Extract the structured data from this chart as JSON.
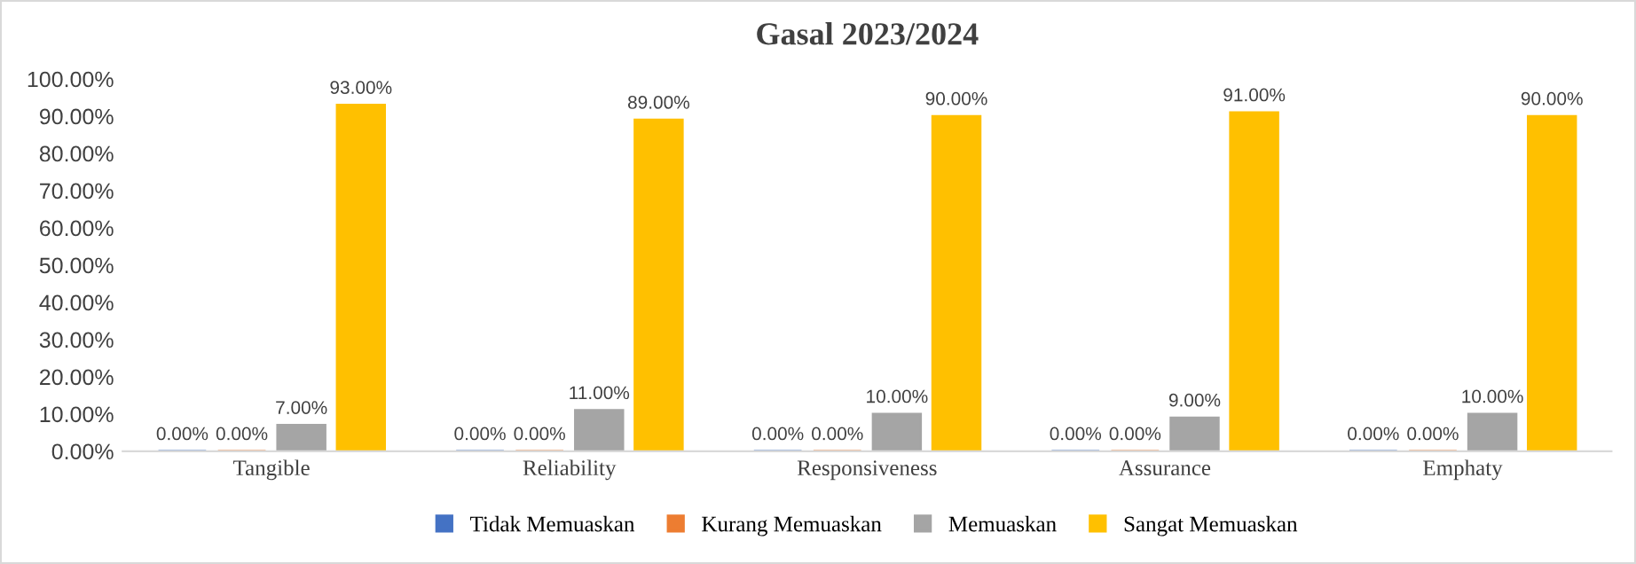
{
  "chart_data": {
    "type": "bar",
    "title": "Gasal 2023/2024",
    "categories": [
      "Tangible",
      "Reliability",
      "Responsiveness",
      "Assurance",
      "Emphaty"
    ],
    "series": [
      {
        "name": "Tidak Memuaskan",
        "color": "#4472c4",
        "values": [
          0,
          0,
          0,
          0,
          0
        ],
        "value_labels": [
          "0.00%",
          "0.00%",
          "0.00%",
          "0.00%",
          "0.00%"
        ]
      },
      {
        "name": "Kurang Memuaskan",
        "color": "#ed7d31",
        "values": [
          0,
          0,
          0,
          0,
          0
        ],
        "value_labels": [
          "0.00%",
          "0.00%",
          "0.00%",
          "0.00%",
          "0.00%"
        ]
      },
      {
        "name": "Memuaskan",
        "color": "#a5a5a5",
        "values": [
          7,
          11,
          10,
          9,
          10
        ],
        "value_labels": [
          "7.00%",
          "11.00%",
          "10.00%",
          "9.00%",
          "10.00%"
        ]
      },
      {
        "name": "Sangat Memuaskan",
        "color": "#ffc000",
        "values": [
          93,
          89,
          90,
          91,
          90
        ],
        "value_labels": [
          "93.00%",
          "89.00%",
          "90.00%",
          "91.00%",
          "90.00%"
        ]
      }
    ],
    "ylim": [
      0,
      100
    ],
    "yticks": [
      {
        "value": 0,
        "label": "0.00%"
      },
      {
        "value": 10,
        "label": "10.00%"
      },
      {
        "value": 20,
        "label": "20.00%"
      },
      {
        "value": 30,
        "label": "30.00%"
      },
      {
        "value": 40,
        "label": "40.00%"
      },
      {
        "value": 50,
        "label": "50.00%"
      },
      {
        "value": 60,
        "label": "60.00%"
      },
      {
        "value": 70,
        "label": "70.00%"
      },
      {
        "value": 80,
        "label": "80.00%"
      },
      {
        "value": 90,
        "label": "90.00%"
      },
      {
        "value": 100,
        "label": "100.00%"
      }
    ],
    "grid": false,
    "legend": "bottom"
  }
}
